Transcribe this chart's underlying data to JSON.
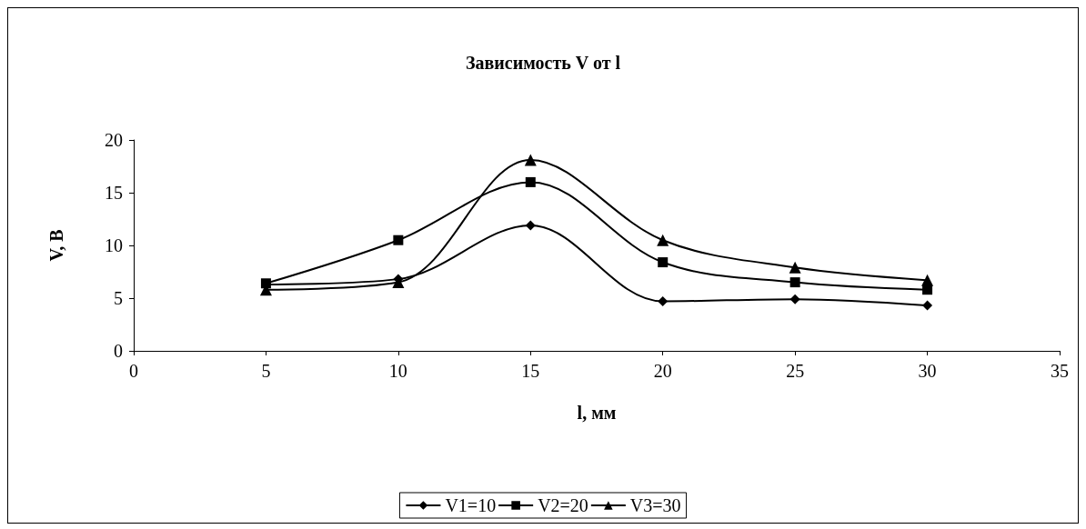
{
  "chart_data": {
    "type": "line",
    "title": "Зависимость V от l",
    "xlabel": "l, мм",
    "ylabel": "V, В",
    "x": [
      5,
      10,
      15,
      20,
      25,
      30
    ],
    "series": [
      {
        "name": "V1=10",
        "color": "#000000",
        "marker": "diamond",
        "values": [
          6.3,
          6.8,
          11.9,
          4.7,
          4.9,
          4.3
        ]
      },
      {
        "name": "V2=20",
        "color": "#000000",
        "marker": "square",
        "values": [
          6.4,
          10.5,
          16.0,
          8.4,
          6.5,
          5.8
        ]
      },
      {
        "name": "V3=30",
        "color": "#000000",
        "marker": "triangle",
        "values": [
          5.8,
          6.5,
          18.1,
          10.5,
          7.9,
          6.7
        ]
      }
    ],
    "xlim": [
      0,
      35
    ],
    "xticks": [
      0,
      5,
      10,
      15,
      20,
      25,
      30,
      35
    ],
    "ylim": [
      0,
      20
    ],
    "yticks": [
      0,
      5,
      10,
      15,
      20
    ],
    "grid": false,
    "legend": "bottom",
    "line_style": "solid"
  }
}
